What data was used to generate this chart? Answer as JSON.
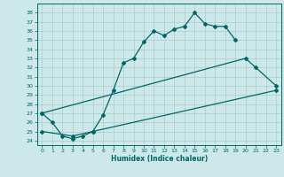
{
  "xlabel": "Humidex (Indice chaleur)",
  "background_color": "#cce8e8",
  "grid_color": "#aacccc",
  "line_color": "#006666",
  "xlim": [
    -0.5,
    23.5
  ],
  "ylim": [
    23.5,
    39.0
  ],
  "xticks": [
    0,
    1,
    2,
    3,
    4,
    5,
    6,
    7,
    8,
    9,
    10,
    11,
    12,
    13,
    14,
    15,
    16,
    17,
    18,
    19,
    20,
    21,
    22,
    23
  ],
  "yticks": [
    24,
    25,
    26,
    27,
    28,
    29,
    30,
    31,
    32,
    33,
    34,
    35,
    36,
    37,
    38
  ],
  "line1": {
    "x": [
      0,
      1,
      2,
      3,
      4,
      5,
      6,
      7,
      8,
      9,
      10,
      11,
      12,
      13,
      14,
      15,
      16,
      17,
      18,
      19
    ],
    "y": [
      27.0,
      26.0,
      24.5,
      24.2,
      24.5,
      25.0,
      26.8,
      29.5,
      32.5,
      33.0,
      34.8,
      36.0,
      35.5,
      36.2,
      36.5,
      38.0,
      36.8,
      36.5,
      36.5,
      35.0
    ]
  },
  "line2": {
    "x": [
      0,
      20,
      21,
      23
    ],
    "y": [
      27.0,
      33.0,
      32.0,
      30.0
    ]
  },
  "line3": {
    "x": [
      0,
      3,
      5,
      23
    ],
    "y": [
      25.0,
      24.5,
      25.0,
      29.5
    ]
  }
}
